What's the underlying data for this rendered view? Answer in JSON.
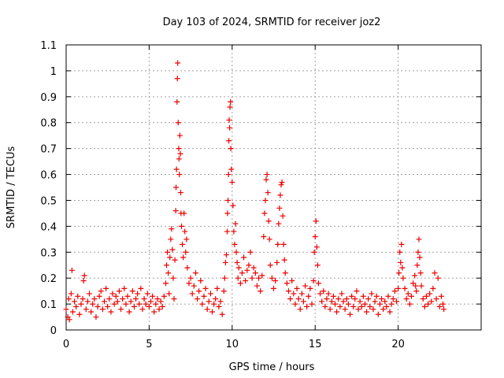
{
  "chart_data": {
    "type": "scatter",
    "title": "Day 103 of 2024, SRMTID for receiver joz2",
    "xlabel": "GPS time / hours",
    "ylabel": "SRMTID / TECUs",
    "xlim": [
      0,
      25
    ],
    "ylim": [
      0,
      1.1
    ],
    "xticks": [
      0,
      5,
      10,
      15,
      20
    ],
    "yticks": [
      0,
      0.1,
      0.2,
      0.3,
      0.4,
      0.5,
      0.6,
      0.7,
      0.8,
      0.9,
      1,
      1.1
    ],
    "xtick_labels": [
      "0",
      "5",
      "10",
      "15",
      "20"
    ],
    "ytick_labels": [
      "0",
      "0.1",
      "0.2",
      "0.3",
      "0.4",
      "0.5",
      "0.6",
      "0.7",
      "0.8",
      "0.9",
      "1",
      "1.1"
    ],
    "grid": true,
    "marker": "+",
    "color": "#ee0000",
    "series": [
      {
        "name": "SRMTID",
        "points": [
          [
            0.0,
            0.08
          ],
          [
            0.1,
            0.05
          ],
          [
            0.15,
            0.12
          ],
          [
            0.2,
            0.04
          ],
          [
            0.3,
            0.14
          ],
          [
            0.35,
            0.23
          ],
          [
            0.4,
            0.07
          ],
          [
            0.5,
            0.11
          ],
          [
            0.6,
            0.09
          ],
          [
            0.7,
            0.13
          ],
          [
            0.8,
            0.06
          ],
          [
            0.9,
            0.1
          ],
          [
            1.0,
            0.12
          ],
          [
            1.05,
            0.19
          ],
          [
            1.1,
            0.21
          ],
          [
            1.2,
            0.08
          ],
          [
            1.3,
            0.11
          ],
          [
            1.4,
            0.14
          ],
          [
            1.5,
            0.07
          ],
          [
            1.6,
            0.1
          ],
          [
            1.7,
            0.12
          ],
          [
            1.8,
            0.05
          ],
          [
            1.9,
            0.09
          ],
          [
            2.0,
            0.13
          ],
          [
            2.1,
            0.15
          ],
          [
            2.2,
            0.08
          ],
          [
            2.3,
            0.11
          ],
          [
            2.4,
            0.16
          ],
          [
            2.5,
            0.09
          ],
          [
            2.6,
            0.12
          ],
          [
            2.7,
            0.07
          ],
          [
            2.8,
            0.14
          ],
          [
            2.9,
            0.1
          ],
          [
            3.0,
            0.13
          ],
          [
            3.1,
            0.11
          ],
          [
            3.2,
            0.15
          ],
          [
            3.3,
            0.08
          ],
          [
            3.4,
            0.12
          ],
          [
            3.5,
            0.16
          ],
          [
            3.6,
            0.1
          ],
          [
            3.7,
            0.13
          ],
          [
            3.8,
            0.07
          ],
          [
            3.9,
            0.11
          ],
          [
            4.0,
            0.15
          ],
          [
            4.1,
            0.09
          ],
          [
            4.2,
            0.12
          ],
          [
            4.3,
            0.14
          ],
          [
            4.4,
            0.1
          ],
          [
            4.5,
            0.16
          ],
          [
            4.6,
            0.08
          ],
          [
            4.7,
            0.12
          ],
          [
            4.8,
            0.1
          ],
          [
            4.9,
            0.14
          ],
          [
            5.0,
            0.09
          ],
          [
            5.1,
            0.11
          ],
          [
            5.2,
            0.13
          ],
          [
            5.3,
            0.07
          ],
          [
            5.4,
            0.1
          ],
          [
            5.5,
            0.12
          ],
          [
            5.6,
            0.08
          ],
          [
            5.7,
            0.11
          ],
          [
            5.8,
            0.09
          ],
          [
            5.9,
            0.13
          ],
          [
            6.0,
            0.18
          ],
          [
            6.05,
            0.25
          ],
          [
            6.1,
            0.3
          ],
          [
            6.15,
            0.22
          ],
          [
            6.2,
            0.14
          ],
          [
            6.25,
            0.28
          ],
          [
            6.3,
            0.35
          ],
          [
            6.35,
            0.39
          ],
          [
            6.4,
            0.31
          ],
          [
            6.45,
            0.2
          ],
          [
            6.5,
            0.12
          ],
          [
            6.55,
            0.27
          ],
          [
            6.6,
            0.46
          ],
          [
            6.62,
            0.55
          ],
          [
            6.65,
            0.62
          ],
          [
            6.68,
            0.88
          ],
          [
            6.7,
            0.97
          ],
          [
            6.72,
            1.03
          ],
          [
            6.75,
            0.8
          ],
          [
            6.78,
            0.7
          ],
          [
            6.8,
            0.66
          ],
          [
            6.82,
            0.6
          ],
          [
            6.85,
            0.75
          ],
          [
            6.88,
            0.68
          ],
          [
            6.9,
            0.53
          ],
          [
            6.92,
            0.45
          ],
          [
            6.95,
            0.4
          ],
          [
            7.0,
            0.33
          ],
          [
            7.05,
            0.28
          ],
          [
            7.1,
            0.45
          ],
          [
            7.15,
            0.38
          ],
          [
            7.2,
            0.3
          ],
          [
            7.25,
            0.35
          ],
          [
            7.3,
            0.24
          ],
          [
            7.4,
            0.18
          ],
          [
            7.5,
            0.2
          ],
          [
            7.6,
            0.14
          ],
          [
            7.7,
            0.17
          ],
          [
            7.8,
            0.22
          ],
          [
            7.9,
            0.12
          ],
          [
            8.0,
            0.15
          ],
          [
            8.1,
            0.19
          ],
          [
            8.2,
            0.1
          ],
          [
            8.3,
            0.13
          ],
          [
            8.4,
            0.16
          ],
          [
            8.5,
            0.08
          ],
          [
            8.6,
            0.11
          ],
          [
            8.7,
            0.14
          ],
          [
            8.8,
            0.07
          ],
          [
            8.9,
            0.1
          ],
          [
            9.0,
            0.12
          ],
          [
            9.1,
            0.16
          ],
          [
            9.2,
            0.09
          ],
          [
            9.3,
            0.11
          ],
          [
            9.4,
            0.06
          ],
          [
            9.5,
            0.15
          ],
          [
            9.55,
            0.2
          ],
          [
            9.6,
            0.26
          ],
          [
            9.65,
            0.29
          ],
          [
            9.7,
            0.38
          ],
          [
            9.72,
            0.45
          ],
          [
            9.75,
            0.5
          ],
          [
            9.78,
            0.6
          ],
          [
            9.8,
            0.73
          ],
          [
            9.82,
            0.81
          ],
          [
            9.85,
            0.78
          ],
          [
            9.87,
            0.86
          ],
          [
            9.9,
            0.88
          ],
          [
            9.92,
            0.7
          ],
          [
            9.95,
            0.62
          ],
          [
            10.0,
            0.57
          ],
          [
            10.05,
            0.48
          ],
          [
            10.1,
            0.38
          ],
          [
            10.15,
            0.33
          ],
          [
            10.2,
            0.41
          ],
          [
            10.25,
            0.3
          ],
          [
            10.3,
            0.26
          ],
          [
            10.35,
            0.2
          ],
          [
            10.4,
            0.24
          ],
          [
            10.5,
            0.18
          ],
          [
            10.6,
            0.22
          ],
          [
            10.7,
            0.28
          ],
          [
            10.8,
            0.19
          ],
          [
            10.9,
            0.23
          ],
          [
            11.0,
            0.25
          ],
          [
            11.1,
            0.3
          ],
          [
            11.2,
            0.2
          ],
          [
            11.3,
            0.24
          ],
          [
            11.4,
            0.22
          ],
          [
            11.5,
            0.17
          ],
          [
            11.6,
            0.2
          ],
          [
            11.7,
            0.15
          ],
          [
            11.8,
            0.21
          ],
          [
            11.9,
            0.36
          ],
          [
            11.95,
            0.45
          ],
          [
            12.0,
            0.5
          ],
          [
            12.05,
            0.58
          ],
          [
            12.1,
            0.6
          ],
          [
            12.15,
            0.53
          ],
          [
            12.2,
            0.42
          ],
          [
            12.25,
            0.35
          ],
          [
            12.3,
            0.25
          ],
          [
            12.4,
            0.2
          ],
          [
            12.5,
            0.16
          ],
          [
            12.6,
            0.19
          ],
          [
            12.7,
            0.26
          ],
          [
            12.75,
            0.33
          ],
          [
            12.8,
            0.41
          ],
          [
            12.85,
            0.47
          ],
          [
            12.9,
            0.52
          ],
          [
            12.95,
            0.56
          ],
          [
            13.0,
            0.57
          ],
          [
            13.05,
            0.44
          ],
          [
            13.1,
            0.33
          ],
          [
            13.15,
            0.27
          ],
          [
            13.2,
            0.22
          ],
          [
            13.3,
            0.18
          ],
          [
            13.4,
            0.15
          ],
          [
            13.5,
            0.12
          ],
          [
            13.6,
            0.19
          ],
          [
            13.7,
            0.14
          ],
          [
            13.8,
            0.1
          ],
          [
            13.9,
            0.16
          ],
          [
            14.0,
            0.12
          ],
          [
            14.1,
            0.08
          ],
          [
            14.2,
            0.14
          ],
          [
            14.3,
            0.11
          ],
          [
            14.4,
            0.17
          ],
          [
            14.5,
            0.09
          ],
          [
            14.6,
            0.13
          ],
          [
            14.7,
            0.16
          ],
          [
            14.8,
            0.1
          ],
          [
            14.9,
            0.19
          ],
          [
            14.95,
            0.3
          ],
          [
            15.0,
            0.36
          ],
          [
            15.05,
            0.42
          ],
          [
            15.1,
            0.32
          ],
          [
            15.15,
            0.25
          ],
          [
            15.2,
            0.18
          ],
          [
            15.3,
            0.14
          ],
          [
            15.4,
            0.11
          ],
          [
            15.5,
            0.15
          ],
          [
            15.6,
            0.09
          ],
          [
            15.7,
            0.12
          ],
          [
            15.8,
            0.14
          ],
          [
            15.9,
            0.08
          ],
          [
            16.0,
            0.11
          ],
          [
            16.1,
            0.13
          ],
          [
            16.2,
            0.1
          ],
          [
            16.3,
            0.07
          ],
          [
            16.4,
            0.12
          ],
          [
            16.5,
            0.09
          ],
          [
            16.6,
            0.14
          ],
          [
            16.7,
            0.11
          ],
          [
            16.8,
            0.08
          ],
          [
            16.9,
            0.12
          ],
          [
            17.0,
            0.1
          ],
          [
            17.1,
            0.06
          ],
          [
            17.2,
            0.13
          ],
          [
            17.3,
            0.09
          ],
          [
            17.4,
            0.12
          ],
          [
            17.5,
            0.15
          ],
          [
            17.6,
            0.08
          ],
          [
            17.7,
            0.11
          ],
          [
            17.8,
            0.09
          ],
          [
            17.9,
            0.13
          ],
          [
            18.0,
            0.1
          ],
          [
            18.1,
            0.07
          ],
          [
            18.2,
            0.12
          ],
          [
            18.3,
            0.09
          ],
          [
            18.4,
            0.14
          ],
          [
            18.5,
            0.08
          ],
          [
            18.6,
            0.11
          ],
          [
            18.7,
            0.13
          ],
          [
            18.8,
            0.06
          ],
          [
            18.9,
            0.1
          ],
          [
            19.0,
            0.12
          ],
          [
            19.1,
            0.08
          ],
          [
            19.2,
            0.11
          ],
          [
            19.3,
            0.09
          ],
          [
            19.4,
            0.13
          ],
          [
            19.5,
            0.07
          ],
          [
            19.6,
            0.1
          ],
          [
            19.7,
            0.12
          ],
          [
            19.8,
            0.15
          ],
          [
            19.9,
            0.11
          ],
          [
            20.0,
            0.16
          ],
          [
            20.05,
            0.22
          ],
          [
            20.1,
            0.3
          ],
          [
            20.15,
            0.26
          ],
          [
            20.2,
            0.33
          ],
          [
            20.25,
            0.24
          ],
          [
            20.3,
            0.2
          ],
          [
            20.4,
            0.16
          ],
          [
            20.5,
            0.12
          ],
          [
            20.6,
            0.14
          ],
          [
            20.7,
            0.1
          ],
          [
            20.8,
            0.13
          ],
          [
            20.9,
            0.18
          ],
          [
            21.0,
            0.21
          ],
          [
            21.05,
            0.17
          ],
          [
            21.1,
            0.15
          ],
          [
            21.15,
            0.25
          ],
          [
            21.2,
            0.3
          ],
          [
            21.25,
            0.35
          ],
          [
            21.3,
            0.28
          ],
          [
            21.35,
            0.22
          ],
          [
            21.4,
            0.17
          ],
          [
            21.5,
            0.12
          ],
          [
            21.6,
            0.09
          ],
          [
            21.7,
            0.13
          ],
          [
            21.8,
            0.1
          ],
          [
            21.9,
            0.14
          ],
          [
            22.0,
            0.11
          ],
          [
            22.1,
            0.16
          ],
          [
            22.2,
            0.22
          ],
          [
            22.3,
            0.12
          ],
          [
            22.4,
            0.2
          ],
          [
            22.5,
            0.09
          ],
          [
            22.6,
            0.13
          ],
          [
            22.7,
            0.1
          ],
          [
            22.75,
            0.08
          ]
        ]
      }
    ]
  }
}
